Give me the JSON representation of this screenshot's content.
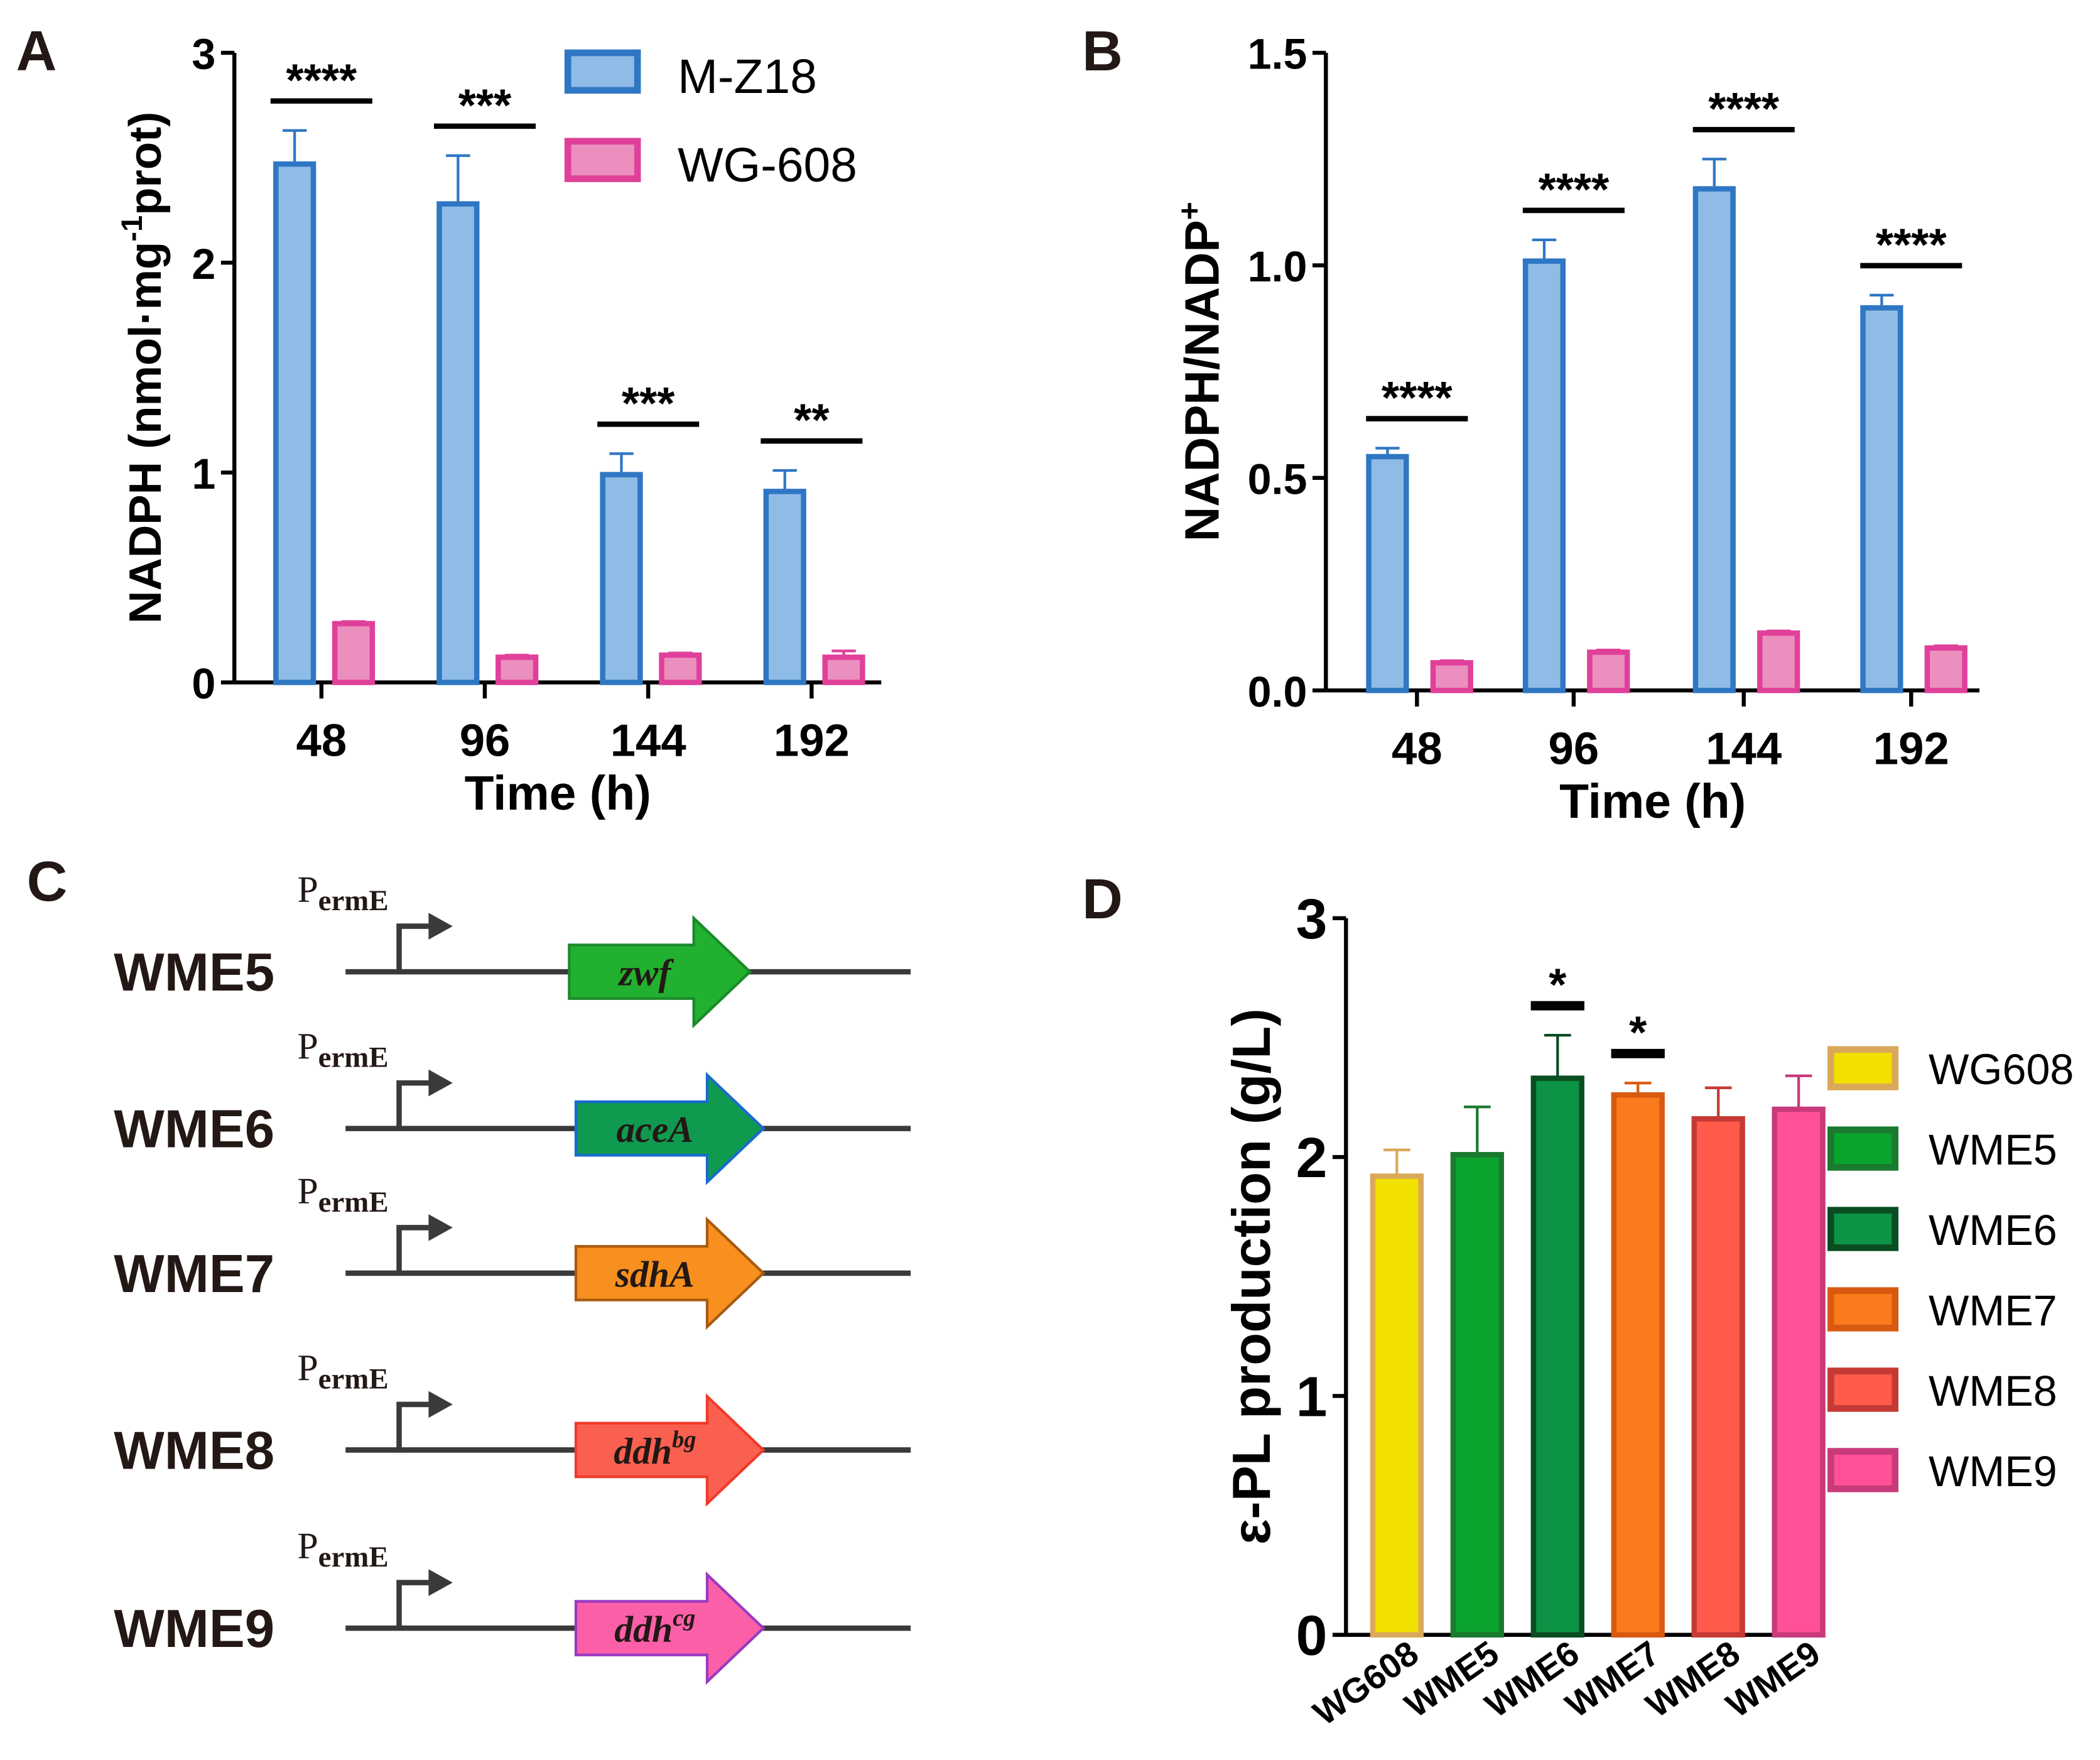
{
  "panel_labels": [
    "A",
    "B",
    "C",
    "D"
  ],
  "chart_data": [
    {
      "panel": "A",
      "type": "bar",
      "categories": [
        "48",
        "96",
        "144",
        "192"
      ],
      "xlabel": "Time (h)",
      "ylabel_main": "NADPH (nmol·mg",
      "ylabel_sup": "-1",
      "ylabel_tail": "prot)",
      "ylim": [
        0,
        3
      ],
      "yticks": [
        "0",
        "1",
        "2",
        "3"
      ],
      "series": [
        {
          "name": "M-Z18",
          "values": [
            2.47,
            2.28,
            0.99,
            0.91
          ],
          "errors": [
            0.16,
            0.23,
            0.1,
            0.1
          ],
          "fill": "#8fbce6",
          "stroke": "#2f77c4"
        },
        {
          "name": "WG-608",
          "values": [
            0.28,
            0.12,
            0.13,
            0.12
          ],
          "errors": [
            0.01,
            0.01,
            0.01,
            0.03
          ],
          "fill": "#eb8fbf",
          "stroke": "#e0409a"
        }
      ],
      "significance": [
        "****",
        "***",
        "***",
        "**"
      ],
      "legend_position": "top-right"
    },
    {
      "panel": "B",
      "type": "bar",
      "categories": [
        "48",
        "96",
        "144",
        "192"
      ],
      "xlabel": "Time (h)",
      "ylabel_main": "NADPH/NADP",
      "ylabel_sup": "+",
      "ylabel_tail": "",
      "ylim": [
        0,
        1.5
      ],
      "yticks": [
        "0.0",
        "0.5",
        "1.0",
        "1.5"
      ],
      "series": [
        {
          "name": "M-Z18",
          "values": [
            0.55,
            1.01,
            1.18,
            0.9
          ],
          "errors": [
            0.02,
            0.05,
            0.07,
            0.03
          ],
          "fill": "#8fbce6",
          "stroke": "#2f77c4"
        },
        {
          "name": "WG-608",
          "values": [
            0.065,
            0.09,
            0.135,
            0.1
          ],
          "errors": [
            0.005,
            0.005,
            0.005,
            0.005
          ],
          "fill": "#eb8fbf",
          "stroke": "#e0409a"
        }
      ],
      "significance": [
        "****",
        "****",
        "****",
        "****"
      ]
    },
    {
      "panel": "D",
      "type": "bar",
      "categories": [
        "WG608",
        "WME5",
        "WME6",
        "WME7",
        "WME8",
        "WME9"
      ],
      "xlabel": "",
      "ylabel_main": "ε-PL production (g/L)",
      "ylim": [
        0,
        3
      ],
      "yticks": [
        "0",
        "1",
        "2",
        "3"
      ],
      "values": [
        1.92,
        2.01,
        2.33,
        2.26,
        2.16,
        2.2
      ],
      "errors": [
        0.11,
        0.2,
        0.18,
        0.05,
        0.13,
        0.14
      ],
      "fills": [
        "#f2e000",
        "#0aa32e",
        "#0c9345",
        "#fb7a1c",
        "#ff5a4a",
        "#ff5098"
      ],
      "strokes": [
        "#d9a85a",
        "#1a7a2e",
        "#0b4d22",
        "#d85a10",
        "#c63a35",
        "#c83a7a"
      ],
      "significance": [
        "",
        "",
        "*",
        "*",
        "",
        ""
      ],
      "legend": [
        "WG608",
        "WME5",
        "WME6",
        "WME7",
        "WME8",
        "WME9"
      ],
      "legend_position": "right"
    }
  ],
  "constructs": {
    "promoter_main": "P",
    "promoter_sub": "ermE",
    "rows": [
      {
        "strain": "WME5",
        "gene": "zwf",
        "sup": "",
        "fill": "#22b030",
        "stroke": "#1a8a28"
      },
      {
        "strain": "WME6",
        "gene": "aceA",
        "sup": "",
        "fill": "#109a50",
        "stroke": "#1a6ad0"
      },
      {
        "strain": "WME7",
        "gene": "sdhA",
        "sup": "",
        "fill": "#f7901e",
        "stroke": "#a85a10"
      },
      {
        "strain": "WME8",
        "gene": "ddh",
        "sup": "bg",
        "fill": "#fa6050",
        "stroke": "#f03a2a"
      },
      {
        "strain": "WME9",
        "gene": "ddh",
        "sup": "cg",
        "fill": "#fb5fa8",
        "stroke": "#9a3ac0"
      }
    ]
  }
}
